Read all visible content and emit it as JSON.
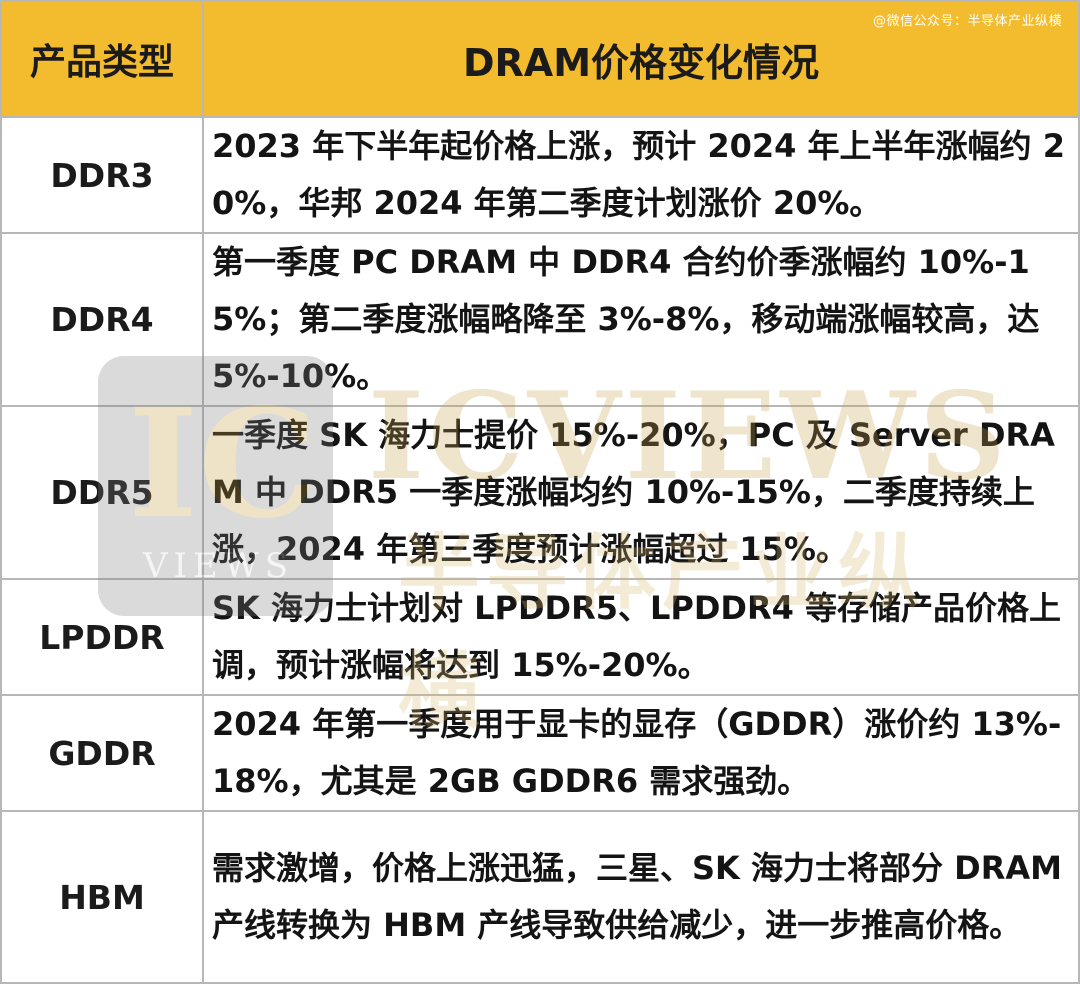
{
  "source_credit": "@微信公众号：半导体产业纵横",
  "table": {
    "headers": [
      "产品类型",
      "DRAM价格变化情况"
    ],
    "rows": [
      {
        "type": "DDR3",
        "desc": "2023 年下半年起价格上涨，预计 2024 年上半年涨幅约 20%，华邦 2024 年第二季度计划涨价 20%。"
      },
      {
        "type": "DDR4",
        "desc": "第一季度 PC DRAM 中 DDR4 合约价季涨幅约 10%-15%；第二季度涨幅略降至 3%-8%，移动端涨幅较高，达 5%-10%。"
      },
      {
        "type": "DDR5",
        "desc": "一季度 SK 海力士提价 15%-20%，PC 及 Server DRAM 中 DDR5 一季度涨幅均约 10%-15%，二季度持续上涨，2024 年第三季度预计涨幅超过 15%。"
      },
      {
        "type": "LPDDR",
        "desc": "SK 海力士计划对 LPDDR5、LPDDR4 等存储产品价格上调，预计涨幅将达到 15%-20%。"
      },
      {
        "type": "GDDR",
        "desc": "2024 年第一季度用于显卡的显存（GDDR）涨价约 13%-18%，尤其是 2GB GDDR6 需求强劲。"
      },
      {
        "type": "HBM",
        "desc": "需求激增，价格上涨迅猛，三星、SK 海力士将部分 DRAM 产线转换为 HBM 产线导致供给减少，进一步推高价格。"
      }
    ]
  },
  "watermark": {
    "logo_letters": "IC",
    "logo_sub": "VIEWS",
    "brand": "ICVIEWS",
    "brand_cn": "半导体产业纵横"
  },
  "colors": {
    "header_bg": "#f3bb2e",
    "border": "#b7b7b7",
    "text": "#141414"
  }
}
